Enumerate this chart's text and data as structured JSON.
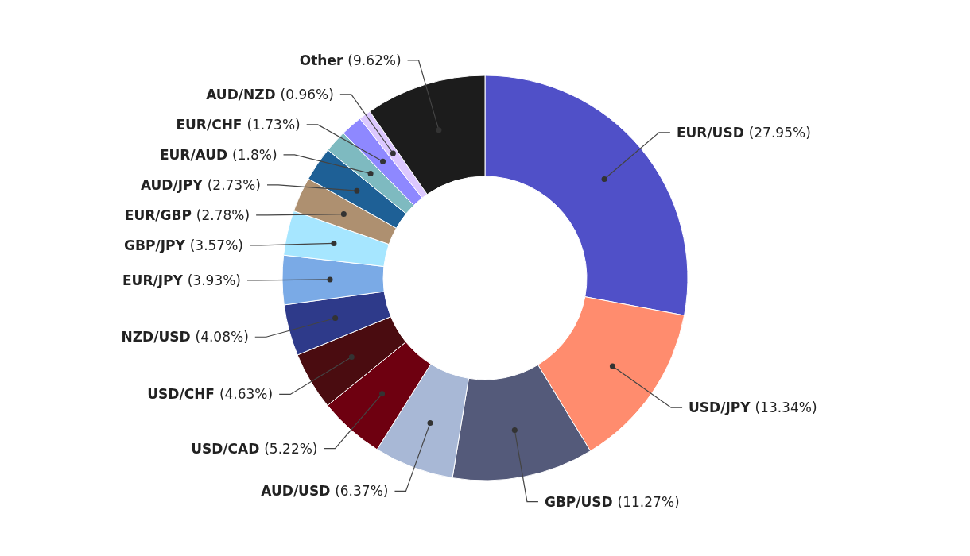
{
  "chart_data": {
    "type": "donut",
    "categories": [
      "EUR/USD",
      "USD/JPY",
      "GBP/USD",
      "AUD/USD",
      "USD/CAD",
      "USD/CHF",
      "NZD/USD",
      "EUR/JPY",
      "GBP/JPY",
      "EUR/GBP",
      "AUD/JPY",
      "EUR/AUD",
      "EUR/CHF",
      "AUD/NZD",
      "Other"
    ],
    "values": [
      27.95,
      13.34,
      11.27,
      6.37,
      5.22,
      4.63,
      4.08,
      3.93,
      3.57,
      2.78,
      2.73,
      1.8,
      1.73,
      0.96,
      9.62
    ],
    "value_labels": [
      "(27.95%)",
      "(13.34%)",
      "(11.27%)",
      "(6.37%)",
      "(5.22%)",
      "(4.63%)",
      "(4.08%)",
      "(3.93%)",
      "(3.57%)",
      "(2.78%)",
      "(2.73%)",
      "(1.8%)",
      "(1.73%)",
      "(0.96%)",
      "(9.62%)"
    ],
    "colors": [
      "#5050c8",
      "#ff8c6e",
      "#545a7a",
      "#a8b8d6",
      "#6e0010",
      "#4a0c10",
      "#2e3a8a",
      "#7aaae6",
      "#a6e6ff",
      "#ae9070",
      "#1e6096",
      "#7ebac0",
      "#8e88ff",
      "#dcc8ff",
      "#1c1c1c"
    ]
  }
}
